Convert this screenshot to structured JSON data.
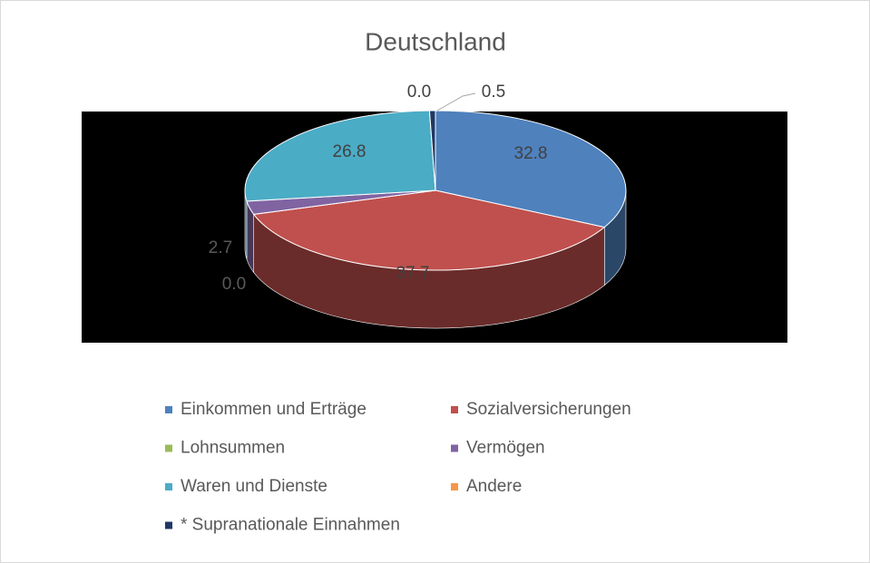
{
  "chart_data": {
    "type": "pie",
    "title": "Deutschland",
    "categories": [
      "Einkommen und Erträge",
      "Sozialversicherungen",
      "Lohnsummen",
      "Vermögen",
      "Waren und Dienste",
      "Andere",
      "* Supranationale Einnahmen"
    ],
    "values": [
      32.8,
      37.7,
      0,
      2.7,
      26.8,
      0,
      0.5
    ],
    "value_labels": [
      "32.8",
      "37.7",
      "0.0",
      "2.7",
      "26.8",
      "0.0",
      "0.5"
    ],
    "colors": [
      "#4f81bd",
      "#c0504d",
      "#9bbb59",
      "#8064a2",
      "#4bacc6",
      "#f79646",
      "#1f3864"
    ],
    "legend": "bottom"
  }
}
